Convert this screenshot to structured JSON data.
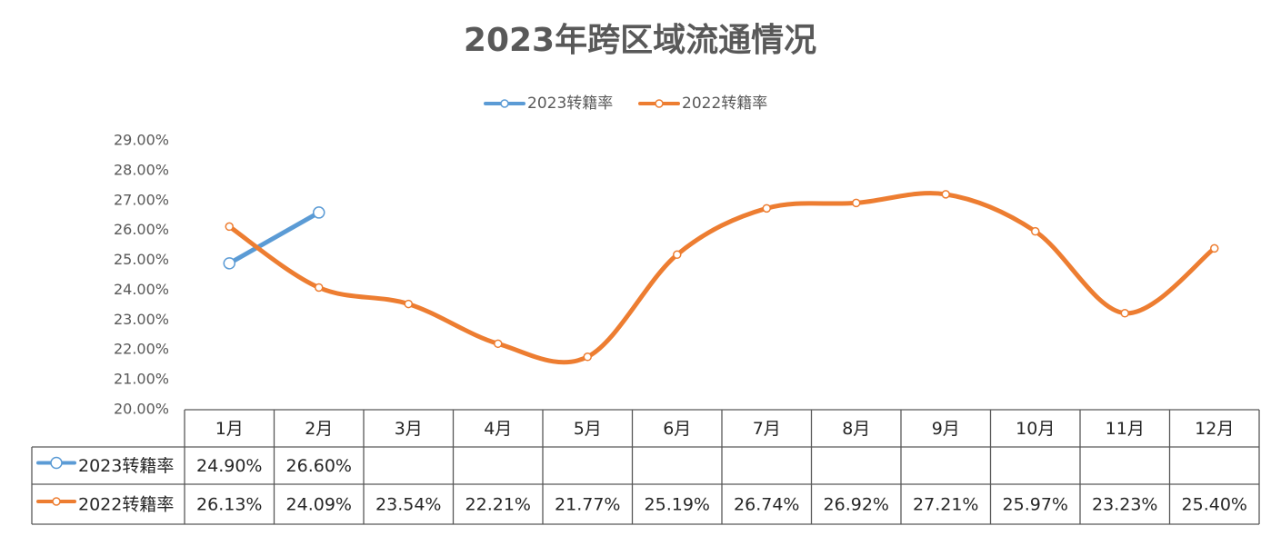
{
  "chart_data": {
    "type": "line",
    "title": "2023年跨区域流通情况",
    "categories": [
      "1月",
      "2月",
      "3月",
      "4月",
      "5月",
      "6月",
      "7月",
      "8月",
      "9月",
      "10月",
      "11月",
      "12月"
    ],
    "series": [
      {
        "name": "2023转籍率",
        "color": "#5b9bd5",
        "smooth": false,
        "values": [
          24.9,
          26.6,
          null,
          null,
          null,
          null,
          null,
          null,
          null,
          null,
          null,
          null
        ],
        "value_labels": [
          "24.90%",
          "26.60%",
          null,
          null,
          null,
          null,
          null,
          null,
          null,
          null,
          null,
          null
        ]
      },
      {
        "name": "2022转籍率",
        "color": "#ed7d31",
        "smooth": true,
        "values": [
          26.13,
          24.09,
          23.54,
          22.21,
          21.77,
          25.19,
          26.74,
          26.92,
          27.21,
          25.97,
          23.23,
          25.4
        ],
        "value_labels": [
          "26.13%",
          "24.09%",
          "23.54%",
          "22.21%",
          "21.77%",
          "25.19%",
          "26.74%",
          "26.92%",
          "27.21%",
          "25.97%",
          "23.23%",
          "25.40%"
        ]
      }
    ],
    "ylim": [
      20,
      29
    ],
    "yticks": [
      {
        "value": 20,
        "label": "20.00%"
      },
      {
        "value": 21,
        "label": "21.00%"
      },
      {
        "value": 22,
        "label": "22.00%"
      },
      {
        "value": 23,
        "label": "23.00%"
      },
      {
        "value": 24,
        "label": "24.00%"
      },
      {
        "value": 25,
        "label": "25.00%"
      },
      {
        "value": 26,
        "label": "26.00%"
      },
      {
        "value": 27,
        "label": "27.00%"
      },
      {
        "value": 28,
        "label": "28.00%"
      },
      {
        "value": 29,
        "label": "29.00%"
      }
    ],
    "grid": false,
    "legend": "top",
    "data_table": true
  }
}
